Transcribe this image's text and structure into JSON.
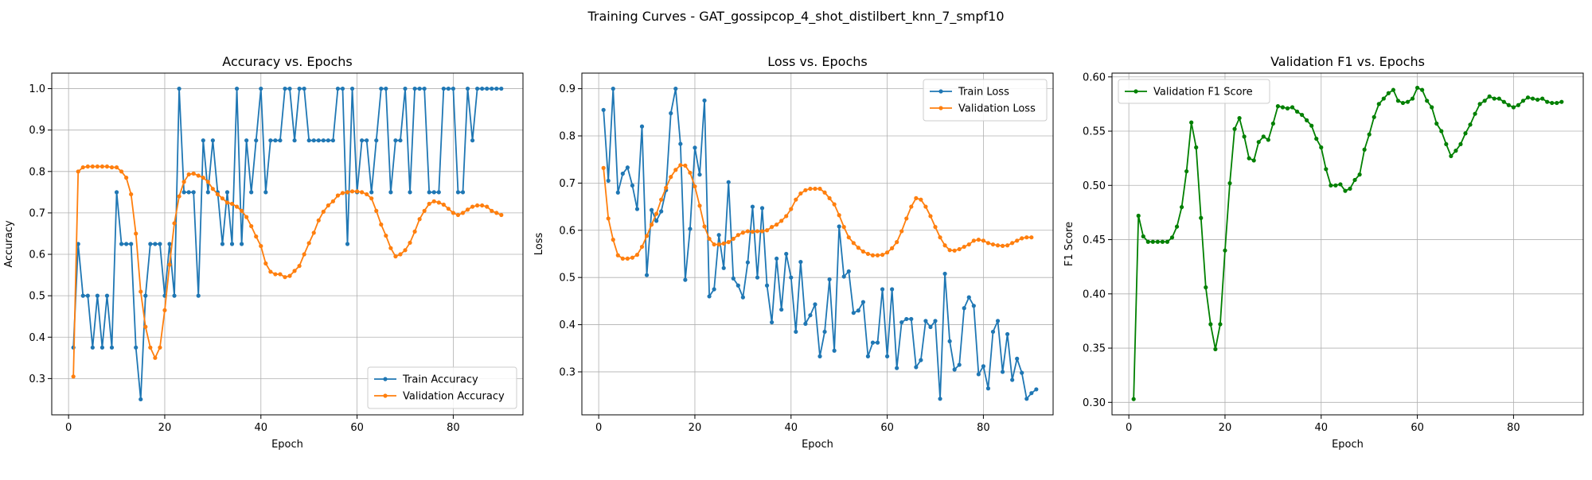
{
  "figure_title": "Training Curves - GAT_gossipcop_4_shot_distilbert_knn_7_smpf10",
  "colors": {
    "blue": "#1f77b4",
    "orange": "#ff7f0e",
    "green": "#008000",
    "grid": "#b0b0b0",
    "axis": "#000000"
  },
  "chart_data": [
    {
      "type": "line",
      "title": "Accuracy vs. Epochs",
      "xlabel": "Epoch",
      "ylabel": "Accuracy",
      "xlim": [
        -3.5,
        94.5
      ],
      "ylim": [
        0.2125,
        1.0375
      ],
      "xticks": [
        0,
        20,
        40,
        60,
        80
      ],
      "yticks": [
        0.3,
        0.4,
        0.5,
        0.6,
        0.7,
        0.8,
        0.9,
        1.0
      ],
      "ytick_labels": [
        "0.3",
        "0.4",
        "0.5",
        "0.6",
        "0.7",
        "0.8",
        "0.9",
        "1.0"
      ],
      "grid": true,
      "legend": "lower-right",
      "x_start": 1,
      "series": [
        {
          "name": "Train Accuracy",
          "color": "#1f77b4",
          "values": [
            0.375,
            0.625,
            0.5,
            0.5,
            0.375,
            0.5,
            0.375,
            0.5,
            0.375,
            0.75,
            0.625,
            0.625,
            0.625,
            0.375,
            0.25,
            0.5,
            0.625,
            0.625,
            0.625,
            0.5,
            0.625,
            0.5,
            1.0,
            0.75,
            0.75,
            0.75,
            0.5,
            0.875,
            0.75,
            0.875,
            0.75,
            0.625,
            0.75,
            0.625,
            1.0,
            0.625,
            0.875,
            0.75,
            0.875,
            1.0,
            0.75,
            0.875,
            0.875,
            0.875,
            1.0,
            1.0,
            0.875,
            1.0,
            1.0,
            0.875,
            0.875,
            0.875,
            0.875,
            0.875,
            0.875,
            1.0,
            1.0,
            0.625,
            1.0,
            0.75,
            0.875,
            0.875,
            0.75,
            0.875,
            1.0,
            1.0,
            0.75,
            0.875,
            0.875,
            1.0,
            0.75,
            1.0,
            1.0,
            1.0,
            0.75,
            0.75,
            0.75,
            1.0,
            1.0,
            1.0,
            0.75,
            0.75,
            1.0,
            0.875,
            1.0,
            1.0,
            1.0,
            1.0,
            1.0,
            1.0
          ]
        },
        {
          "name": "Validation Accuracy",
          "color": "#ff7f0e",
          "values": [
            0.305,
            0.8,
            0.81,
            0.812,
            0.812,
            0.812,
            0.812,
            0.812,
            0.81,
            0.81,
            0.8,
            0.785,
            0.745,
            0.65,
            0.51,
            0.425,
            0.375,
            0.35,
            0.375,
            0.465,
            0.575,
            0.675,
            0.74,
            0.775,
            0.793,
            0.795,
            0.79,
            0.785,
            0.775,
            0.758,
            0.745,
            0.735,
            0.725,
            0.722,
            0.715,
            0.705,
            0.69,
            0.668,
            0.643,
            0.62,
            0.578,
            0.558,
            0.552,
            0.552,
            0.545,
            0.548,
            0.56,
            0.572,
            0.6,
            0.627,
            0.652,
            0.682,
            0.703,
            0.718,
            0.728,
            0.742,
            0.748,
            0.75,
            0.752,
            0.752,
            0.75,
            0.745,
            0.735,
            0.705,
            0.672,
            0.645,
            0.615,
            0.595,
            0.6,
            0.61,
            0.628,
            0.655,
            0.685,
            0.705,
            0.722,
            0.728,
            0.725,
            0.72,
            0.71,
            0.7,
            0.695,
            0.7,
            0.708,
            0.715,
            0.718,
            0.718,
            0.715,
            0.705,
            0.7,
            0.695
          ]
        }
      ]
    },
    {
      "type": "line",
      "title": "Loss vs. Epochs",
      "xlabel": "Epoch",
      "ylabel": "Loss",
      "xlim": [
        -3.5,
        94.5
      ],
      "ylim": [
        0.209,
        0.933
      ],
      "xticks": [
        0,
        20,
        40,
        60,
        80
      ],
      "yticks": [
        0.3,
        0.4,
        0.5,
        0.6,
        0.7,
        0.8,
        0.9
      ],
      "ytick_labels": [
        "0.3",
        "0.4",
        "0.5",
        "0.6",
        "0.7",
        "0.8",
        "0.9"
      ],
      "grid": true,
      "legend": "top-right",
      "x_start": 1,
      "series": [
        {
          "name": "Train Loss",
          "color": "#1f77b4",
          "values": [
            0.855,
            0.705,
            0.9,
            0.68,
            0.72,
            0.733,
            0.695,
            0.645,
            0.82,
            0.505,
            0.643,
            0.62,
            0.64,
            0.685,
            0.848,
            0.9,
            0.783,
            0.495,
            0.603,
            0.775,
            0.718,
            0.875,
            0.46,
            0.475,
            0.59,
            0.52,
            0.702,
            0.498,
            0.483,
            0.458,
            0.532,
            0.65,
            0.5,
            0.647,
            0.483,
            0.405,
            0.54,
            0.432,
            0.55,
            0.5,
            0.385,
            0.533,
            0.402,
            0.42,
            0.443,
            0.333,
            0.385,
            0.496,
            0.345,
            0.608,
            0.502,
            0.513,
            0.425,
            0.43,
            0.448,
            0.333,
            0.362,
            0.362,
            0.475,
            0.333,
            0.475,
            0.308,
            0.405,
            0.412,
            0.412,
            0.31,
            0.325,
            0.408,
            0.395,
            0.408,
            0.243,
            0.508,
            0.365,
            0.305,
            0.315,
            0.435,
            0.458,
            0.44,
            0.295,
            0.312,
            0.265,
            0.385,
            0.408,
            0.3,
            0.38,
            0.283,
            0.328,
            0.298,
            0.243,
            0.255,
            0.263
          ]
        },
        {
          "name": "Validation Loss",
          "color": "#ff7f0e",
          "values": [
            0.732,
            0.625,
            0.58,
            0.547,
            0.54,
            0.54,
            0.542,
            0.548,
            0.565,
            0.588,
            0.612,
            0.635,
            0.665,
            0.69,
            0.713,
            0.728,
            0.738,
            0.737,
            0.722,
            0.693,
            0.652,
            0.608,
            0.582,
            0.57,
            0.57,
            0.572,
            0.575,
            0.582,
            0.59,
            0.595,
            0.598,
            0.597,
            0.598,
            0.598,
            0.6,
            0.607,
            0.612,
            0.62,
            0.63,
            0.645,
            0.665,
            0.678,
            0.685,
            0.688,
            0.688,
            0.688,
            0.68,
            0.668,
            0.655,
            0.632,
            0.607,
            0.585,
            0.573,
            0.563,
            0.555,
            0.55,
            0.547,
            0.547,
            0.548,
            0.553,
            0.562,
            0.575,
            0.598,
            0.625,
            0.65,
            0.668,
            0.665,
            0.65,
            0.63,
            0.607,
            0.585,
            0.568,
            0.558,
            0.557,
            0.56,
            0.565,
            0.57,
            0.578,
            0.58,
            0.578,
            0.573,
            0.57,
            0.568,
            0.567,
            0.568,
            0.573,
            0.578,
            0.583,
            0.585,
            0.585
          ]
        }
      ]
    },
    {
      "type": "line",
      "title": "Validation F1 vs. Epochs",
      "xlabel": "Epoch",
      "ylabel": "F1 Score",
      "xlim": [
        -3.5,
        94.5
      ],
      "ylim": [
        0.2885,
        0.6035
      ],
      "xticks": [
        0,
        20,
        40,
        60,
        80
      ],
      "yticks": [
        0.3,
        0.35,
        0.4,
        0.45,
        0.5,
        0.55,
        0.6
      ],
      "ytick_labels": [
        "0.30",
        "0.35",
        "0.40",
        "0.45",
        "0.50",
        "0.55",
        "0.60"
      ],
      "grid": true,
      "legend": "top-left",
      "x_start": 1,
      "series": [
        {
          "name": "Validation F1 Score",
          "color": "#008000",
          "values": [
            0.303,
            0.472,
            0.453,
            0.448,
            0.448,
            0.448,
            0.448,
            0.448,
            0.452,
            0.462,
            0.48,
            0.513,
            0.558,
            0.535,
            0.47,
            0.406,
            0.372,
            0.349,
            0.372,
            0.44,
            0.502,
            0.552,
            0.562,
            0.545,
            0.525,
            0.523,
            0.54,
            0.545,
            0.542,
            0.557,
            0.573,
            0.572,
            0.571,
            0.572,
            0.568,
            0.565,
            0.56,
            0.555,
            0.543,
            0.535,
            0.515,
            0.5,
            0.5,
            0.501,
            0.495,
            0.497,
            0.505,
            0.51,
            0.533,
            0.547,
            0.563,
            0.575,
            0.58,
            0.585,
            0.588,
            0.578,
            0.576,
            0.577,
            0.58,
            0.59,
            0.588,
            0.578,
            0.572,
            0.557,
            0.55,
            0.538,
            0.527,
            0.532,
            0.538,
            0.548,
            0.556,
            0.566,
            0.575,
            0.578,
            0.582,
            0.58,
            0.58,
            0.577,
            0.574,
            0.572,
            0.574,
            0.578,
            0.581,
            0.58,
            0.579,
            0.58,
            0.577,
            0.576,
            0.576,
            0.577
          ]
        }
      ]
    }
  ]
}
